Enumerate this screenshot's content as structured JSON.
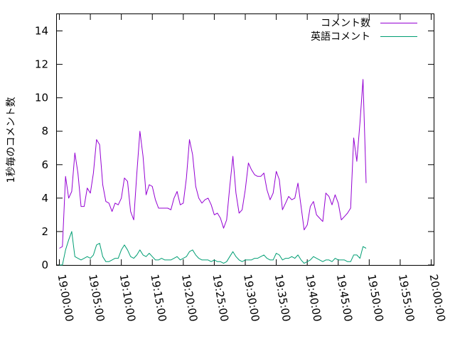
{
  "chart_data": {
    "type": "line",
    "title": "",
    "xlabel": "",
    "ylabel": "1秒毎のコメント数",
    "x_tick_labels": [
      "19:00:00",
      "19:05:00",
      "19:10:00",
      "19:15:00",
      "19:20:00",
      "19:25:00",
      "19:30:00",
      "19:35:00",
      "19:40:00",
      "19:45:00",
      "19:50:00",
      "19:55:00",
      "20:00:00"
    ],
    "y_ticks": [
      0,
      2,
      4,
      6,
      8,
      10,
      12,
      14
    ],
    "x_range_minutes": [
      -0.4,
      60.4
    ],
    "ylim": [
      0,
      15
    ],
    "x_label_rotation_deg": 80,
    "grid": false,
    "legend_position": "top-right",
    "x_step_minutes": 0.5,
    "series": [
      {
        "name": "コメント数",
        "color": "#9400d3",
        "values": [
          1.0,
          1.1,
          5.3,
          4.0,
          4.4,
          6.7,
          5.5,
          3.5,
          3.5,
          4.6,
          4.3,
          5.5,
          7.5,
          7.2,
          4.8,
          3.8,
          3.7,
          3.2,
          3.7,
          3.6,
          4.0,
          5.2,
          5.0,
          3.2,
          2.7,
          5.5,
          8.0,
          6.5,
          4.2,
          4.8,
          4.7,
          3.9,
          3.4,
          3.4,
          3.4,
          3.4,
          3.3,
          4.0,
          4.4,
          3.6,
          3.7,
          5.2,
          7.5,
          6.6,
          4.7,
          4.0,
          3.7,
          3.9,
          4.0,
          3.6,
          3.0,
          3.1,
          2.8,
          2.2,
          2.7,
          4.7,
          6.5,
          4.3,
          3.1,
          3.3,
          4.5,
          6.1,
          5.7,
          5.4,
          5.3,
          5.3,
          5.5,
          4.5,
          3.9,
          4.3,
          5.6,
          5.1,
          3.3,
          3.7,
          4.1,
          3.9,
          4.0,
          4.9,
          3.5,
          2.1,
          2.4,
          3.5,
          3.8,
          3.0,
          2.8,
          2.6,
          4.3,
          4.1,
          3.6,
          4.2,
          3.7,
          2.7,
          2.9,
          3.1,
          3.4,
          7.6,
          6.2,
          8.5,
          11.1,
          4.9
        ]
      },
      {
        "name": "英語コメント",
        "color": "#009e73",
        "values": [
          0.0,
          0.0,
          0.9,
          1.5,
          2.0,
          0.5,
          0.4,
          0.3,
          0.4,
          0.5,
          0.4,
          0.6,
          1.2,
          1.3,
          0.5,
          0.2,
          0.2,
          0.3,
          0.4,
          0.4,
          0.9,
          1.2,
          0.9,
          0.5,
          0.4,
          0.6,
          0.9,
          0.6,
          0.5,
          0.7,
          0.5,
          0.3,
          0.3,
          0.4,
          0.3,
          0.3,
          0.3,
          0.4,
          0.5,
          0.3,
          0.4,
          0.5,
          0.8,
          0.9,
          0.6,
          0.4,
          0.3,
          0.3,
          0.3,
          0.2,
          0.3,
          0.2,
          0.2,
          0.1,
          0.2,
          0.5,
          0.8,
          0.5,
          0.3,
          0.2,
          0.3,
          0.3,
          0.3,
          0.4,
          0.4,
          0.5,
          0.6,
          0.4,
          0.3,
          0.3,
          0.7,
          0.6,
          0.3,
          0.4,
          0.4,
          0.5,
          0.4,
          0.6,
          0.3,
          0.1,
          0.2,
          0.3,
          0.5,
          0.4,
          0.3,
          0.2,
          0.3,
          0.3,
          0.2,
          0.4,
          0.3,
          0.3,
          0.3,
          0.2,
          0.2,
          0.6,
          0.6,
          0.4,
          1.1,
          1.0
        ]
      }
    ]
  }
}
